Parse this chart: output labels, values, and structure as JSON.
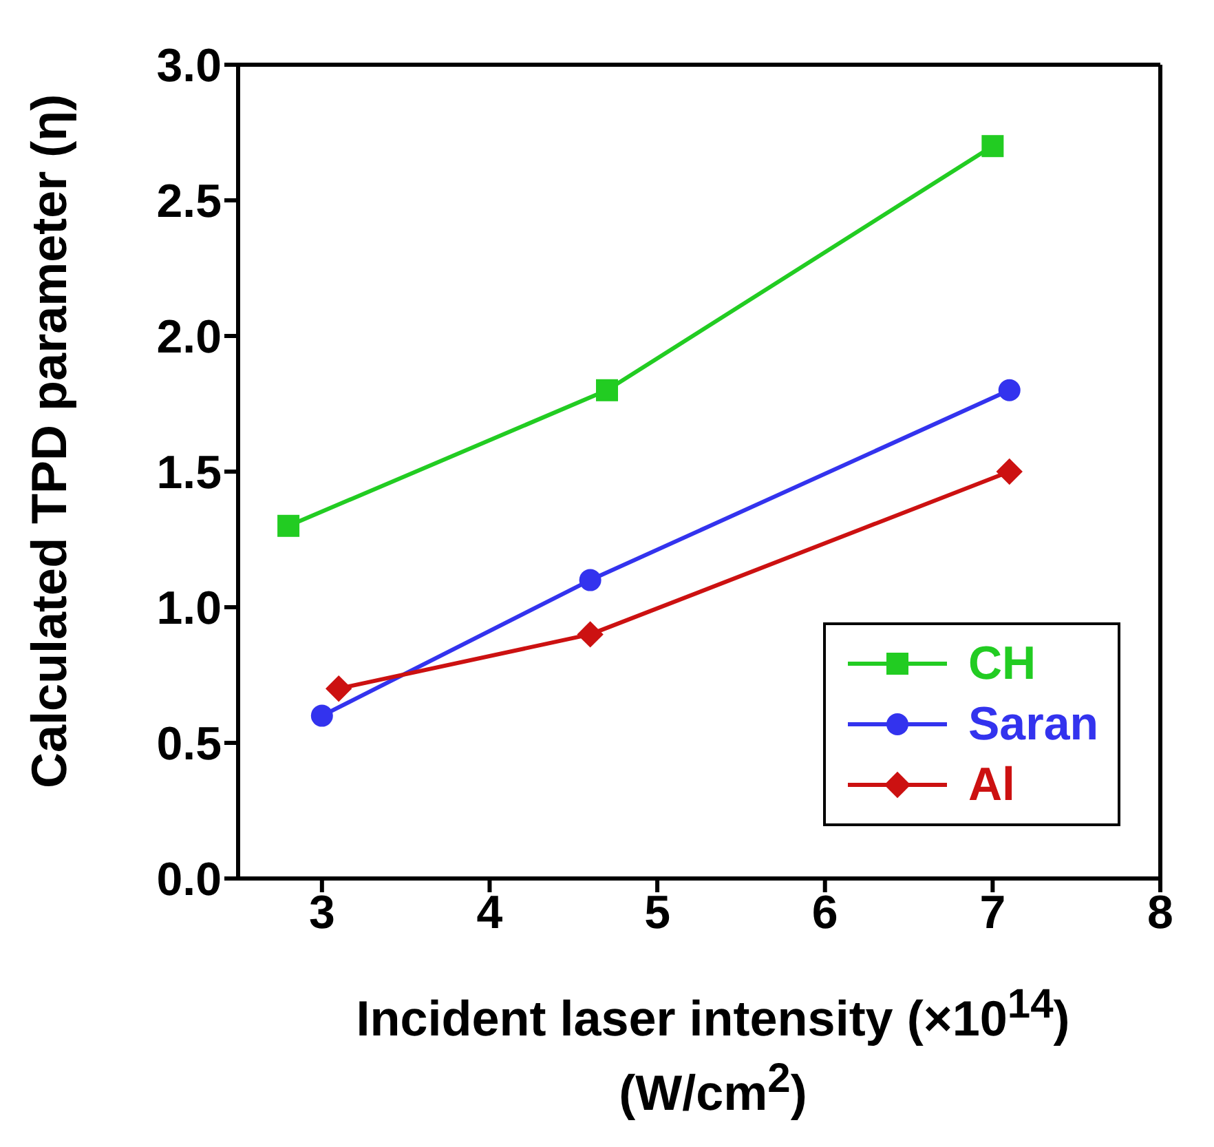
{
  "chart_data": {
    "type": "line",
    "xlabel": "Incident laser intensity (×10$^{14}$)(W/cm$^{2}$)",
    "ylabel": "Calculated TPD parameter (η)",
    "xlim": [
      2.5,
      8
    ],
    "xticks": [
      3,
      4,
      5,
      6,
      7,
      8
    ],
    "ylim": [
      0,
      3
    ],
    "yticks": [
      {
        "value": 0,
        "label": "0.0"
      },
      {
        "value": 0.5,
        "label": "0.5"
      },
      {
        "value": 1,
        "label": "1.0"
      },
      {
        "value": 1.5,
        "label": "1.5"
      },
      {
        "value": 2,
        "label": "2.0"
      },
      {
        "value": 2.5,
        "label": "2.5"
      },
      {
        "value": 3,
        "label": "3.0"
      }
    ],
    "grid": false,
    "legend": "bottom right",
    "line_style": "solid",
    "series": [
      {
        "name": "CH",
        "color": "#22cc22",
        "marker": "square",
        "x": [
          2.8,
          4.7,
          7.0
        ],
        "values": [
          1.3,
          1.8,
          2.7
        ]
      },
      {
        "name": "Saran",
        "color": "#3333ee",
        "marker": "circle",
        "x": [
          3.0,
          4.6,
          7.1
        ],
        "values": [
          0.6,
          1.1,
          1.8
        ]
      },
      {
        "name": "Al",
        "color": "#cc1111",
        "marker": "diamond",
        "x": [
          3.1,
          4.6,
          7.1
        ],
        "values": [
          0.7,
          0.9,
          1.5
        ]
      }
    ]
  }
}
